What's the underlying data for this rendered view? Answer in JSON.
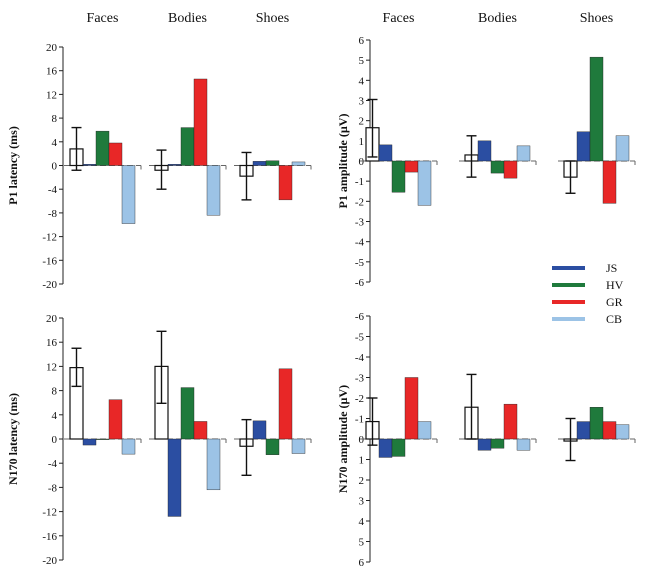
{
  "colors": {
    "JS": "#2b4ea2",
    "HV": "#1f7a3c",
    "GR": "#e82727",
    "CB": "#9cc3e6",
    "control_fill": "#ffffff",
    "axis": "#222222"
  },
  "legend": {
    "entries": [
      "JS",
      "HV",
      "GR",
      "CB"
    ],
    "placement": "center-right"
  },
  "chart_data": [
    {
      "id": "p1-latency",
      "type": "bar",
      "ylabel": "P1 latency (ms)",
      "ylim": [
        -20,
        20
      ],
      "yticks": [
        20,
        16,
        12,
        8,
        4,
        0,
        -4,
        -8,
        -12,
        -16,
        -20
      ],
      "inverted": false,
      "groups": [
        "Faces",
        "Bodies",
        "Shoes"
      ],
      "control": {
        "mean": [
          2.8,
          -0.8,
          -1.8
        ],
        "err_low": [
          -0.8,
          -4.0,
          -5.8
        ],
        "err_high": [
          6.4,
          2.6,
          2.2
        ]
      },
      "series": [
        {
          "name": "JS",
          "values": [
            0.2,
            0.2,
            0.7
          ]
        },
        {
          "name": "HV",
          "values": [
            5.8,
            6.4,
            0.8
          ]
        },
        {
          "name": "GR",
          "values": [
            3.8,
            14.6,
            -5.8
          ]
        },
        {
          "name": "CB",
          "values": [
            -9.8,
            -8.4,
            0.6
          ]
        }
      ]
    },
    {
      "id": "p1-amplitude",
      "type": "bar",
      "ylabel": "P1 amplitude (µV)",
      "ylim": [
        -6,
        6
      ],
      "yticks": [
        6,
        5,
        4,
        3,
        2,
        1,
        0,
        -1,
        -2,
        -3,
        -4,
        -5,
        -6
      ],
      "inverted": false,
      "groups": [
        "Faces",
        "Bodies",
        "Shoes"
      ],
      "control": {
        "mean": [
          1.65,
          0.3,
          -0.8
        ],
        "err_low": [
          0.2,
          -0.8,
          -1.6
        ],
        "err_high": [
          3.05,
          1.25,
          0.0
        ]
      },
      "series": [
        {
          "name": "JS",
          "values": [
            0.8,
            1.0,
            1.45
          ]
        },
        {
          "name": "HV",
          "values": [
            -1.55,
            -0.6,
            5.15
          ]
        },
        {
          "name": "GR",
          "values": [
            -0.55,
            -0.85,
            -2.1
          ]
        },
        {
          "name": "CB",
          "values": [
            -2.2,
            0.75,
            1.25
          ]
        }
      ]
    },
    {
      "id": "n170-latency",
      "type": "bar",
      "ylabel": "N170 latency (ms)",
      "ylim": [
        -20,
        20
      ],
      "yticks": [
        20,
        16,
        12,
        8,
        4,
        0,
        -4,
        -8,
        -12,
        -16,
        -20
      ],
      "inverted": false,
      "groups": [
        "Faces",
        "Bodies",
        "Shoes"
      ],
      "control": {
        "mean": [
          11.8,
          12.0,
          -1.2
        ],
        "err_low": [
          8.7,
          5.9,
          -6.0
        ],
        "err_high": [
          15.0,
          17.8,
          3.2
        ]
      },
      "series": [
        {
          "name": "JS",
          "values": [
            -1.0,
            -12.8,
            3.0
          ]
        },
        {
          "name": "HV",
          "values": [
            0.0,
            8.5,
            -2.6
          ]
        },
        {
          "name": "GR",
          "values": [
            6.5,
            2.9,
            11.6
          ]
        },
        {
          "name": "CB",
          "values": [
            -2.5,
            -8.4,
            -2.4
          ]
        }
      ]
    },
    {
      "id": "n170-amplitude",
      "type": "bar",
      "ylabel": "N170 amplitude (µV)",
      "ylim": [
        -6,
        6
      ],
      "yticks": [
        -6,
        -5,
        -4,
        -3,
        -2,
        -1,
        0,
        1,
        2,
        3,
        4,
        5,
        6
      ],
      "inverted": true,
      "groups": [
        "Faces",
        "Bodies",
        "Shoes"
      ],
      "control": {
        "mean": [
          -0.85,
          -1.55,
          0.1
        ],
        "err_low": [
          0.3,
          0.0,
          1.05
        ],
        "err_high": [
          -2.0,
          -3.15,
          -1.0
        ]
      },
      "series": [
        {
          "name": "JS",
          "values": [
            0.9,
            0.55,
            -0.85
          ]
        },
        {
          "name": "HV",
          "values": [
            0.85,
            0.45,
            -1.55
          ]
        },
        {
          "name": "GR",
          "values": [
            -3.0,
            -1.7,
            -0.85
          ]
        },
        {
          "name": "CB",
          "values": [
            -0.85,
            0.55,
            -0.7
          ]
        }
      ]
    }
  ]
}
